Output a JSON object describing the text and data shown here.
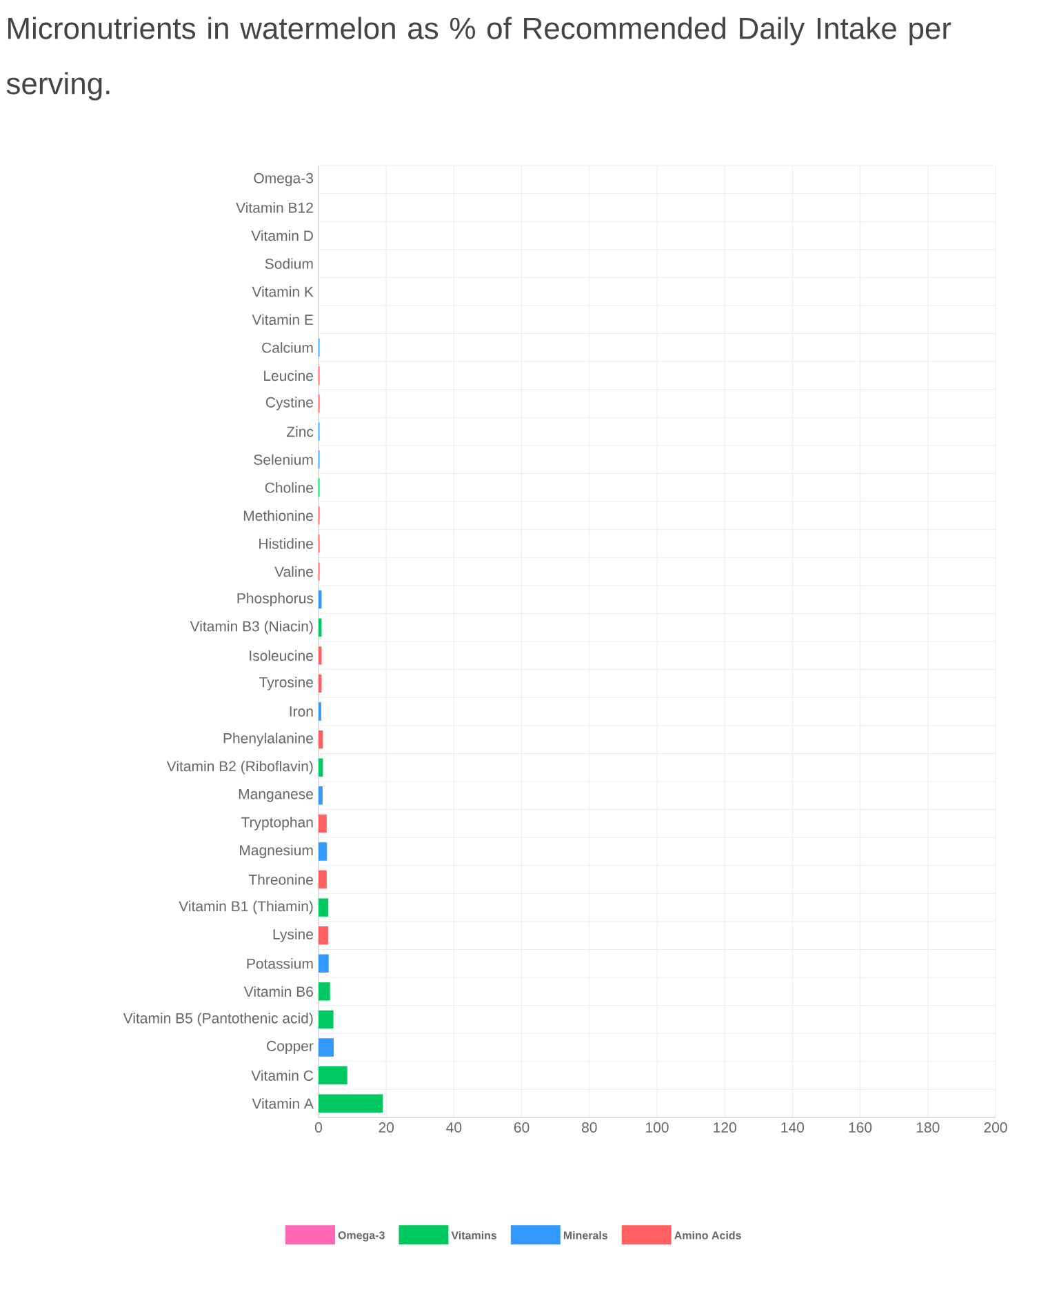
{
  "chart_data": {
    "type": "bar",
    "orientation": "horizontal",
    "stacked": true,
    "title": "Micronutrients in watermelon as % of Recommended Daily Intake per serving.",
    "categories": [
      "Omega-3",
      "Vitamin B12",
      "Vitamin D",
      "Sodium",
      "Vitamin K",
      "Vitamin E",
      "Calcium",
      "Leucine",
      "Cystine",
      "Zinc",
      "Selenium",
      "Choline",
      "Methionine",
      "Histidine",
      "Valine",
      "Phosphorus",
      "Vitamin B3 (Niacin)",
      "Isoleucine",
      "Tyrosine",
      "Iron",
      "Phenylalanine",
      "Vitamin B2 (Riboflavin)",
      "Manganese",
      "Tryptophan",
      "Magnesium",
      "Threonine",
      "Vitamin B1 (Thiamin)",
      "Lysine",
      "Potassium",
      "Vitamin B6",
      "Vitamin B5 (Pantothenic acid)",
      "Copper",
      "Vitamin C",
      "Vitamin A"
    ],
    "series": [
      {
        "name": "Omega-3",
        "color": "#ff66b3",
        "values": [
          0,
          null,
          null,
          null,
          null,
          null,
          null,
          null,
          null,
          null,
          null,
          null,
          null,
          null,
          null,
          null,
          null,
          null,
          null,
          null,
          null,
          null,
          null,
          null,
          null,
          null,
          null,
          null,
          null,
          null,
          null,
          null,
          null,
          null
        ]
      },
      {
        "name": "Vitamins",
        "color": "#00c962",
        "values": [
          null,
          0,
          0,
          null,
          0,
          0,
          null,
          null,
          null,
          null,
          null,
          0.3,
          null,
          null,
          null,
          null,
          0.9,
          null,
          null,
          null,
          null,
          1.3,
          null,
          null,
          null,
          null,
          2.9,
          null,
          null,
          3.4,
          4.4,
          null,
          8.5,
          19
        ]
      },
      {
        "name": "Minerals",
        "color": "#3399ff",
        "values": [
          null,
          null,
          null,
          0,
          null,
          null,
          0.3,
          null,
          null,
          0.3,
          0.3,
          null,
          null,
          null,
          null,
          0.9,
          null,
          null,
          null,
          0.8,
          null,
          null,
          1.2,
          null,
          2.5,
          null,
          null,
          null,
          3,
          null,
          null,
          4.5,
          null,
          null
        ]
      },
      {
        "name": "Amino Acids",
        "color": "#ff6060",
        "values": [
          null,
          null,
          null,
          null,
          null,
          null,
          null,
          0.3,
          0.3,
          null,
          null,
          null,
          0.3,
          0.3,
          0.3,
          null,
          null,
          0.9,
          0.9,
          null,
          1.3,
          null,
          null,
          2.4,
          null,
          2.4,
          null,
          2.9,
          null,
          null,
          null,
          null,
          null,
          null
        ]
      }
    ],
    "xlim": [
      0,
      200
    ],
    "xticks": [
      0,
      20,
      40,
      60,
      80,
      100,
      120,
      140,
      160,
      180,
      200
    ],
    "grid": true,
    "legend": "bottom"
  }
}
